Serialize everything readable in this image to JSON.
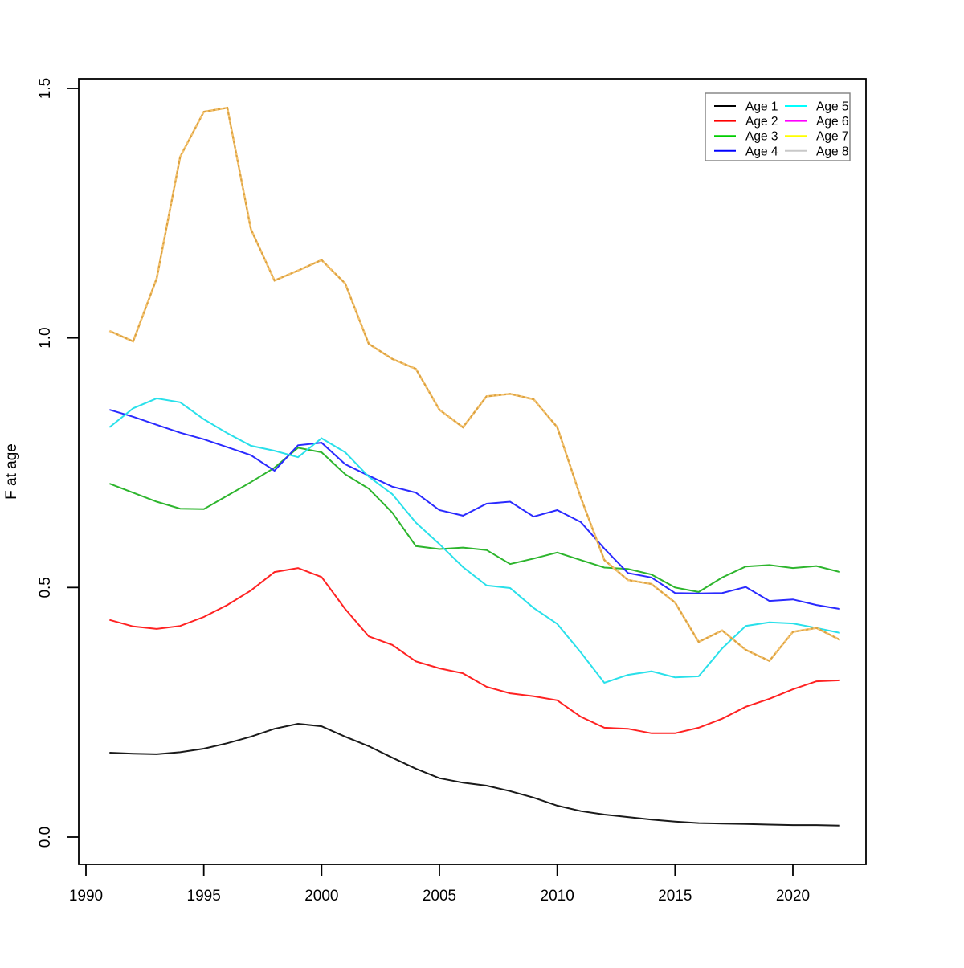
{
  "chart_data": {
    "type": "line",
    "title": "",
    "xlabel": "",
    "ylabel": "F at age",
    "x_ticks": [
      1990,
      1995,
      2000,
      2005,
      2010,
      2015,
      2020
    ],
    "y_ticks": [
      0.0,
      0.5,
      1.0,
      1.5
    ],
    "y_tick_labels": [
      "0.0",
      "0.5",
      "1.0",
      "1.5"
    ],
    "xlim": [
      1989.7,
      2023.1
    ],
    "ylim": [
      -0.055,
      1.52
    ],
    "grid": false,
    "legend_position": "top-right",
    "x": [
      1991,
      1992,
      1993,
      1994,
      1995,
      1996,
      1997,
      1998,
      1999,
      2000,
      2001,
      2002,
      2003,
      2004,
      2005,
      2006,
      2007,
      2008,
      2009,
      2010,
      2011,
      2012,
      2013,
      2014,
      2015,
      2016,
      2017,
      2018,
      2019,
      2020,
      2021,
      2022
    ],
    "series": [
      {
        "name": "Age 1",
        "legend_color": "#000000",
        "plot_color": "#1a1a1a",
        "values": [
          0.169,
          0.167,
          0.166,
          0.17,
          0.177,
          0.188,
          0.201,
          0.217,
          0.227,
          0.222,
          0.201,
          0.182,
          0.159,
          0.137,
          0.118,
          0.109,
          0.103,
          0.092,
          0.079,
          0.063,
          0.052,
          0.045,
          0.04,
          0.035,
          0.031,
          0.028,
          0.027,
          0.026,
          0.025,
          0.024,
          0.024,
          0.023
        ]
      },
      {
        "name": "Age 2",
        "legend_color": "#ff0000",
        "plot_color": "#ff2222",
        "values": [
          0.435,
          0.422,
          0.417,
          0.423,
          0.441,
          0.465,
          0.494,
          0.531,
          0.539,
          0.521,
          0.457,
          0.402,
          0.385,
          0.352,
          0.338,
          0.328,
          0.301,
          0.288,
          0.282,
          0.274,
          0.241,
          0.219,
          0.217,
          0.208,
          0.208,
          0.219,
          0.237,
          0.261,
          0.277,
          0.296,
          0.312,
          0.314
        ]
      },
      {
        "name": "Age 3",
        "legend_color": "#00cd00",
        "plot_color": "#2db52d",
        "values": [
          0.708,
          0.69,
          0.672,
          0.658,
          0.657,
          0.684,
          0.711,
          0.74,
          0.78,
          0.771,
          0.727,
          0.698,
          0.65,
          0.583,
          0.577,
          0.58,
          0.575,
          0.547,
          0.558,
          0.57,
          0.555,
          0.54,
          0.537,
          0.526,
          0.5,
          0.491,
          0.52,
          0.542,
          0.545,
          0.539,
          0.543,
          0.531
        ]
      },
      {
        "name": "Age 4",
        "legend_color": "#0000ff",
        "plot_color": "#2a2aff",
        "values": [
          0.856,
          0.842,
          0.826,
          0.81,
          0.797,
          0.781,
          0.765,
          0.734,
          0.785,
          0.79,
          0.747,
          0.724,
          0.702,
          0.69,
          0.655,
          0.644,
          0.668,
          0.672,
          0.642,
          0.655,
          0.631,
          0.578,
          0.529,
          0.52,
          0.489,
          0.488,
          0.489,
          0.501,
          0.473,
          0.476,
          0.465,
          0.457
        ]
      },
      {
        "name": "Age 5",
        "legend_color": "#00ffff",
        "plot_color": "#29e0ea",
        "values": [
          0.821,
          0.859,
          0.879,
          0.871,
          0.837,
          0.809,
          0.784,
          0.774,
          0.761,
          0.799,
          0.771,
          0.722,
          0.687,
          0.63,
          0.587,
          0.541,
          0.504,
          0.499,
          0.459,
          0.427,
          0.37,
          0.309,
          0.325,
          0.332,
          0.32,
          0.322,
          0.378,
          0.423,
          0.43,
          0.428,
          0.419,
          0.409
        ]
      },
      {
        "name": "Age 6",
        "legend_color": "#ff00ff",
        "overlap_group": "ages-6-8",
        "values": [
          1.014,
          0.993,
          1.119,
          1.363,
          1.453,
          1.461,
          1.218,
          1.115,
          1.135,
          1.156,
          1.109,
          0.988,
          0.958,
          0.938,
          0.856,
          0.821,
          0.883,
          0.888,
          0.877,
          0.821,
          0.68,
          0.555,
          0.515,
          0.507,
          0.47,
          0.391,
          0.414,
          0.375,
          0.353,
          0.411,
          0.419,
          0.395
        ]
      },
      {
        "name": "Age 7",
        "legend_color": "#ffff00",
        "overlap_group": "ages-6-8",
        "values": [
          1.014,
          0.993,
          1.119,
          1.363,
          1.453,
          1.461,
          1.218,
          1.115,
          1.135,
          1.156,
          1.109,
          0.988,
          0.958,
          0.938,
          0.856,
          0.821,
          0.883,
          0.888,
          0.877,
          0.821,
          0.68,
          0.555,
          0.515,
          0.507,
          0.47,
          0.391,
          0.414,
          0.375,
          0.353,
          0.411,
          0.419,
          0.395
        ]
      },
      {
        "name": "Age 8",
        "legend_color": "#c8c8c8",
        "overlap_group": "ages-6-8",
        "values": [
          1.014,
          0.993,
          1.119,
          1.363,
          1.453,
          1.461,
          1.218,
          1.115,
          1.135,
          1.156,
          1.109,
          0.988,
          0.958,
          0.938,
          0.856,
          0.821,
          0.883,
          0.888,
          0.877,
          0.821,
          0.68,
          0.555,
          0.515,
          0.507,
          0.47,
          0.391,
          0.414,
          0.375,
          0.353,
          0.411,
          0.419,
          0.395
        ]
      },
      {
        "name_note": ""
      }
    ],
    "overlap_display": {
      "note": "Ages 6-8 coincide exactly; drawn over each other they appear as one tan dotted line",
      "base_color": "#dda23f",
      "dash_color": "#f5c472"
    },
    "legend": {
      "entries": [
        "Age 1",
        "Age 2",
        "Age 3",
        "Age 4",
        "Age 5",
        "Age 6",
        "Age 7",
        "Age 8"
      ],
      "columns": 2,
      "border_color": "#808080"
    },
    "axis_color": "#000000",
    "background_color": "#ffffff"
  }
}
